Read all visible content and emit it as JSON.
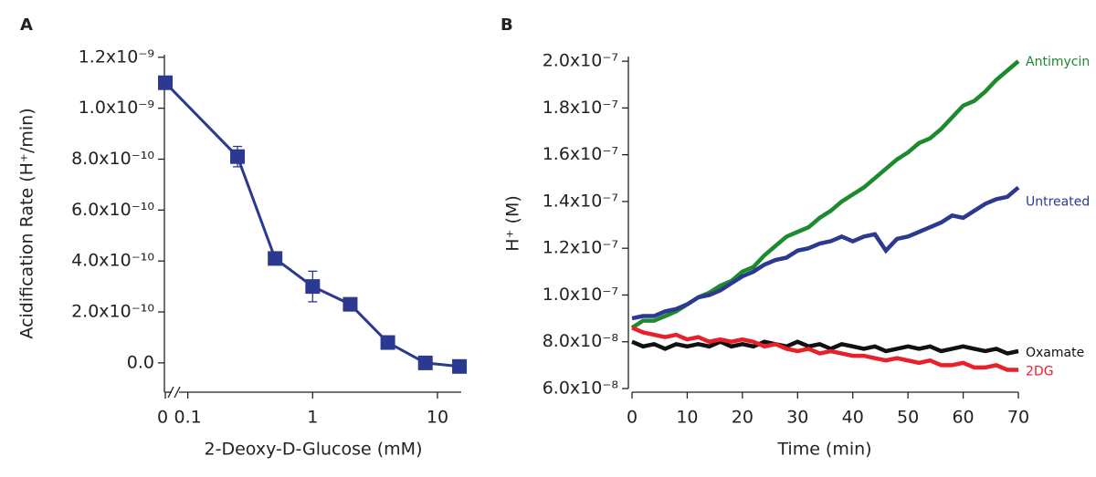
{
  "chart_data": [
    {
      "type": "line",
      "panel_label": "A",
      "x_label": "2-Deoxy-D-Glucose (mM)",
      "y_label": "Acidification Rate (H⁺/min)",
      "xscale": "log",
      "x_axis_break": true,
      "x": [
        0,
        0.25,
        0.5,
        1,
        2,
        4,
        8,
        15
      ],
      "series": [
        {
          "color": "#2b3990",
          "marker": "square",
          "values": [
            1.1e-09,
            8.1e-10,
            4.1e-10,
            3e-10,
            2.3e-10,
            8e-11,
            0,
            -1.4e-11
          ],
          "errors": [
            null,
            4e-11,
            2e-11,
            6e-11,
            1e-11,
            null,
            null,
            null
          ]
        }
      ],
      "xlim": [
        0.085,
        15.5
      ],
      "xticks": [
        0,
        0.1,
        1,
        10
      ],
      "ylim": [
        -1.15e-10,
        1.21e-09
      ],
      "yticks": [
        {
          "value": 0,
          "label": "0.0"
        },
        {
          "value": 2e-10,
          "label": "2.0x10⁻¹⁰"
        },
        {
          "value": 4e-10,
          "label": "4.0x10⁻¹⁰"
        },
        {
          "value": 6e-10,
          "label": "6.0x10⁻¹⁰"
        },
        {
          "value": 8e-10,
          "label": "8.0x10⁻¹⁰"
        },
        {
          "value": 1e-09,
          "label": "1.0x10⁻⁹"
        },
        {
          "value": 1.2e-09,
          "label": "1.2x10⁻⁹"
        }
      ]
    },
    {
      "type": "line",
      "panel_label": "B",
      "x_label": "Time (min)",
      "y_label": "H⁺ (M)",
      "x": [
        0,
        2,
        4,
        6,
        8,
        10,
        12,
        14,
        16,
        18,
        20,
        22,
        24,
        26,
        28,
        30,
        32,
        34,
        36,
        38,
        40,
        42,
        44,
        46,
        48,
        50,
        52,
        54,
        56,
        58,
        60,
        62,
        64,
        66,
        68,
        70
      ],
      "series": [
        {
          "name": "Antimycin",
          "color": "#1e8a2e",
          "values": [
            8.6e-08,
            8.9e-08,
            8.9e-08,
            9.1e-08,
            9.3e-08,
            9.6e-08,
            9.9e-08,
            1.01e-07,
            1.04e-07,
            1.06e-07,
            1.1e-07,
            1.12e-07,
            1.17e-07,
            1.21e-07,
            1.25e-07,
            1.27e-07,
            1.29e-07,
            1.33e-07,
            1.36e-07,
            1.4e-07,
            1.43e-07,
            1.46e-07,
            1.5e-07,
            1.54e-07,
            1.58e-07,
            1.61e-07,
            1.65e-07,
            1.67e-07,
            1.71e-07,
            1.76e-07,
            1.81e-07,
            1.83e-07,
            1.87e-07,
            1.92e-07,
            1.96e-07,
            2e-07
          ]
        },
        {
          "name": "Untreated",
          "color": "#2b3990",
          "values": [
            9e-08,
            9.1e-08,
            9.1e-08,
            9.3e-08,
            9.4e-08,
            9.6e-08,
            9.9e-08,
            1e-07,
            1.02e-07,
            1.05e-07,
            1.08e-07,
            1.1e-07,
            1.13e-07,
            1.15e-07,
            1.16e-07,
            1.19e-07,
            1.2e-07,
            1.22e-07,
            1.23e-07,
            1.25e-07,
            1.23e-07,
            1.25e-07,
            1.26e-07,
            1.19e-07,
            1.24e-07,
            1.25e-07,
            1.27e-07,
            1.29e-07,
            1.31e-07,
            1.34e-07,
            1.33e-07,
            1.36e-07,
            1.39e-07,
            1.41e-07,
            1.42e-07,
            1.46e-07
          ]
        },
        {
          "name": "Oxamate",
          "color": "#111111",
          "values": [
            8e-08,
            7.8e-08,
            7.9e-08,
            7.7e-08,
            7.9e-08,
            7.8e-08,
            7.9e-08,
            7.8e-08,
            8e-08,
            7.8e-08,
            7.9e-08,
            7.8e-08,
            8e-08,
            7.9e-08,
            7.8e-08,
            8e-08,
            7.8e-08,
            7.9e-08,
            7.7e-08,
            7.9e-08,
            7.8e-08,
            7.7e-08,
            7.8e-08,
            7.6e-08,
            7.7e-08,
            7.8e-08,
            7.7e-08,
            7.8e-08,
            7.6e-08,
            7.7e-08,
            7.8e-08,
            7.7e-08,
            7.6e-08,
            7.7e-08,
            7.5e-08,
            7.6e-08
          ]
        },
        {
          "name": "2DG",
          "color": "#e8202a",
          "values": [
            8.6e-08,
            8.4e-08,
            8.3e-08,
            8.2e-08,
            8.3e-08,
            8.1e-08,
            8.2e-08,
            8e-08,
            8.1e-08,
            8e-08,
            8.1e-08,
            8e-08,
            7.8e-08,
            7.9e-08,
            7.7e-08,
            7.6e-08,
            7.7e-08,
            7.5e-08,
            7.6e-08,
            7.5e-08,
            7.4e-08,
            7.4e-08,
            7.3e-08,
            7.2e-08,
            7.3e-08,
            7.2e-08,
            7.1e-08,
            7.2e-08,
            7e-08,
            7e-08,
            7.1e-08,
            6.9e-08,
            6.9e-08,
            7e-08,
            6.8e-08,
            6.8e-08
          ]
        }
      ],
      "xlim": [
        0,
        70
      ],
      "xticks": [
        0,
        10,
        20,
        30,
        40,
        50,
        60,
        70
      ],
      "ylim": [
        6e-08,
        2.02e-07
      ],
      "yticks": [
        {
          "value": 6e-08,
          "label": "6.0x10⁻⁸"
        },
        {
          "value": 8e-08,
          "label": "8.0x10⁻⁸"
        },
        {
          "value": 1e-07,
          "label": "1.0x10⁻⁷"
        },
        {
          "value": 1.2e-07,
          "label": "1.2x10⁻⁷"
        },
        {
          "value": 1.4e-07,
          "label": "1.4x10⁻⁷"
        },
        {
          "value": 1.6e-07,
          "label": "1.6x10⁻⁷"
        },
        {
          "value": 1.8e-07,
          "label": "1.8x10⁻⁷"
        },
        {
          "value": 2e-07,
          "label": "2.0x10⁻⁷"
        }
      ]
    }
  ]
}
